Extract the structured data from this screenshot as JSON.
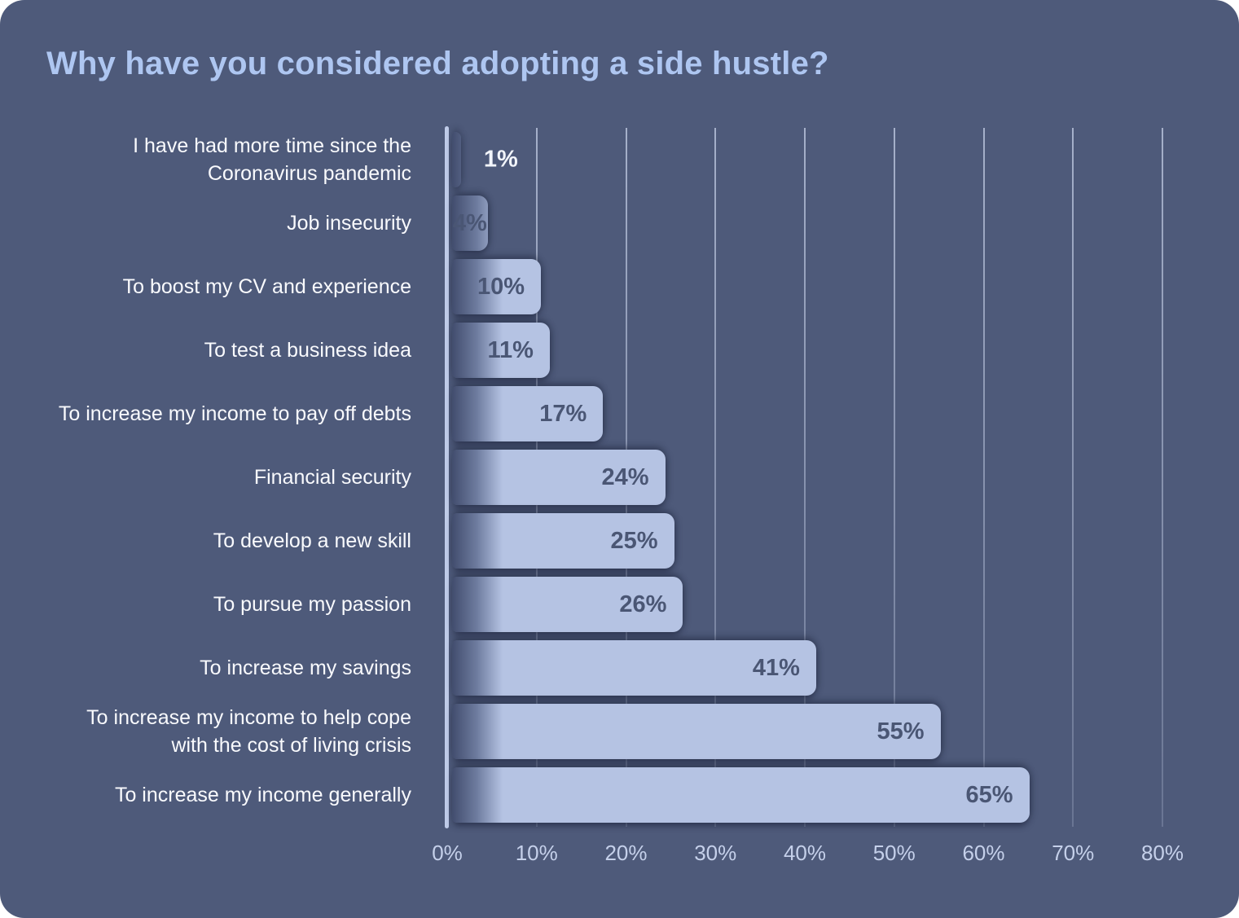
{
  "title": "Why have you considered adopting a side hustle?",
  "colors": {
    "panel_background": "#4e5a7a",
    "outer_background": "#ffffff",
    "bar_light": "#b5c3e3",
    "bar_gradient_dark": "#424d6e",
    "title_text": "#aec6f1",
    "category_text": "#f9fafd",
    "value_text_inside": "#4a5674",
    "value_text_outside": "#f2f5fb",
    "axis_line": "#bfcbe8",
    "gridline": "rgba(203,213,236,0.6)",
    "tick_text": "#c5d0ea"
  },
  "chart_data": {
    "type": "bar",
    "orientation": "horizontal",
    "title": "Why have you considered adopting a side hustle?",
    "xlabel": "",
    "ylabel": "",
    "xlim": [
      0,
      80
    ],
    "grid": "vertical",
    "legend": "none",
    "x_ticks": [
      "0%",
      "10%",
      "20%",
      "30%",
      "40%",
      "50%",
      "60%",
      "70%",
      "80%"
    ],
    "categories": [
      "I have had more time since the Coronavirus pandemic",
      "Job insecurity",
      "To boost my CV and experience",
      "To test a business idea",
      "To increase my income to pay off debts",
      "Financial security",
      "To develop a new skill",
      "To pursue my passion",
      "To increase my savings",
      "To increase my income to help cope with the cost of living crisis",
      "To increase my income generally"
    ],
    "values": [
      1,
      4,
      10,
      11,
      17,
      24,
      25,
      26,
      41,
      55,
      65
    ],
    "rows": [
      {
        "lines": [
          "I have had more time since the",
          "Coronavirus pandemic"
        ],
        "value": 1,
        "label": "1%",
        "label_pos": "out"
      },
      {
        "lines": [
          "Job insecurity"
        ],
        "value": 4,
        "label": "4%",
        "label_pos": "center"
      },
      {
        "lines": [
          "To boost my CV and experience"
        ],
        "value": 10,
        "label": "10%",
        "label_pos": "in"
      },
      {
        "lines": [
          "To test a business idea"
        ],
        "value": 11,
        "label": "11%",
        "label_pos": "in"
      },
      {
        "lines": [
          "To increase my income to pay off debts"
        ],
        "value": 17,
        "label": "17%",
        "label_pos": "in"
      },
      {
        "lines": [
          "Financial security"
        ],
        "value": 24,
        "label": "24%",
        "label_pos": "in"
      },
      {
        "lines": [
          "To develop a new skill"
        ],
        "value": 25,
        "label": "25%",
        "label_pos": "in"
      },
      {
        "lines": [
          "To pursue my passion"
        ],
        "value": 26,
        "label": "26%",
        "label_pos": "in"
      },
      {
        "lines": [
          "To increase my savings"
        ],
        "value": 41,
        "label": "41%",
        "label_pos": "in"
      },
      {
        "lines": [
          "To increase my income to help cope",
          "with the cost of living crisis"
        ],
        "value": 55,
        "label": "55%",
        "label_pos": "in"
      },
      {
        "lines": [
          "To increase my income generally"
        ],
        "value": 65,
        "label": "65%",
        "label_pos": "in"
      }
    ]
  }
}
